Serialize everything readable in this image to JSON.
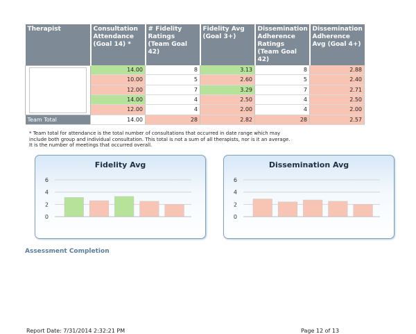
{
  "table": {
    "headers": [
      "Therapist",
      "Consultation Attendance (Goal 14) *",
      "# Fidelity Ratings (Team Goal 42)",
      "Fidelity Avg (Goal 3+)",
      "Dissemination Adherence Ratings (Team Goal 42)",
      "Dissemination Adherence Avg (Goal 4+)"
    ],
    "rows": [
      {
        "attendance": "14.00",
        "fid_count": "8",
        "fid_avg": "3.13",
        "dis_count": "8",
        "dis_avg": "2.88"
      },
      {
        "attendance": "10.00",
        "fid_count": "5",
        "fid_avg": "2.60",
        "dis_count": "5",
        "dis_avg": "2.40"
      },
      {
        "attendance": "12.00",
        "fid_count": "7",
        "fid_avg": "3.29",
        "dis_count": "7",
        "dis_avg": "2.71"
      },
      {
        "attendance": "14.00",
        "fid_count": "4",
        "fid_avg": "2.50",
        "dis_count": "4",
        "dis_avg": "2.50"
      },
      {
        "attendance": "12.00",
        "fid_count": "4",
        "fid_avg": "2.00",
        "dis_count": "4",
        "dis_avg": "2.00"
      }
    ],
    "total": {
      "label": "Team Total",
      "attendance": "14.00",
      "fid_count": "28",
      "fid_avg": "2.82",
      "dis_count": "28",
      "dis_avg": "2.57"
    }
  },
  "footnote": "* Team total for attendance is the total number of consultations that occurred in date range which may include both group and individual consultation. This total is not a sum of all therapists, nor is it an average. It is the number of meetings that occurred overall.",
  "colors": {
    "meets_goal": "#b6e29a",
    "below_goal": "#f8c5b5",
    "header": "#7f8a97"
  },
  "chart_data": [
    {
      "type": "bar",
      "title": "Fidelity Avg",
      "values": [
        3.13,
        2.6,
        3.29,
        2.5,
        2.0
      ],
      "bar_colors": [
        "#b6e29a",
        "#f8c5b5",
        "#b6e29a",
        "#f8c5b5",
        "#f8c5b5"
      ],
      "yticks": [
        "0",
        "2",
        "4",
        "6"
      ],
      "ylim": [
        0,
        6
      ],
      "grid": true
    },
    {
      "type": "bar",
      "title": "Dissemination Avg",
      "values": [
        2.88,
        2.4,
        2.71,
        2.5,
        2.0
      ],
      "bar_colors": [
        "#f8c5b5",
        "#f8c5b5",
        "#f8c5b5",
        "#f8c5b5",
        "#f8c5b5"
      ],
      "yticks": [
        "0",
        "2",
        "4",
        "6"
      ],
      "ylim": [
        0,
        6
      ],
      "grid": true
    }
  ],
  "section_title": "Assessment Completion",
  "footer": {
    "report_date": "Report Date: 7/31/2014 2:32:21 PM",
    "page": "Page 12 of 13"
  }
}
